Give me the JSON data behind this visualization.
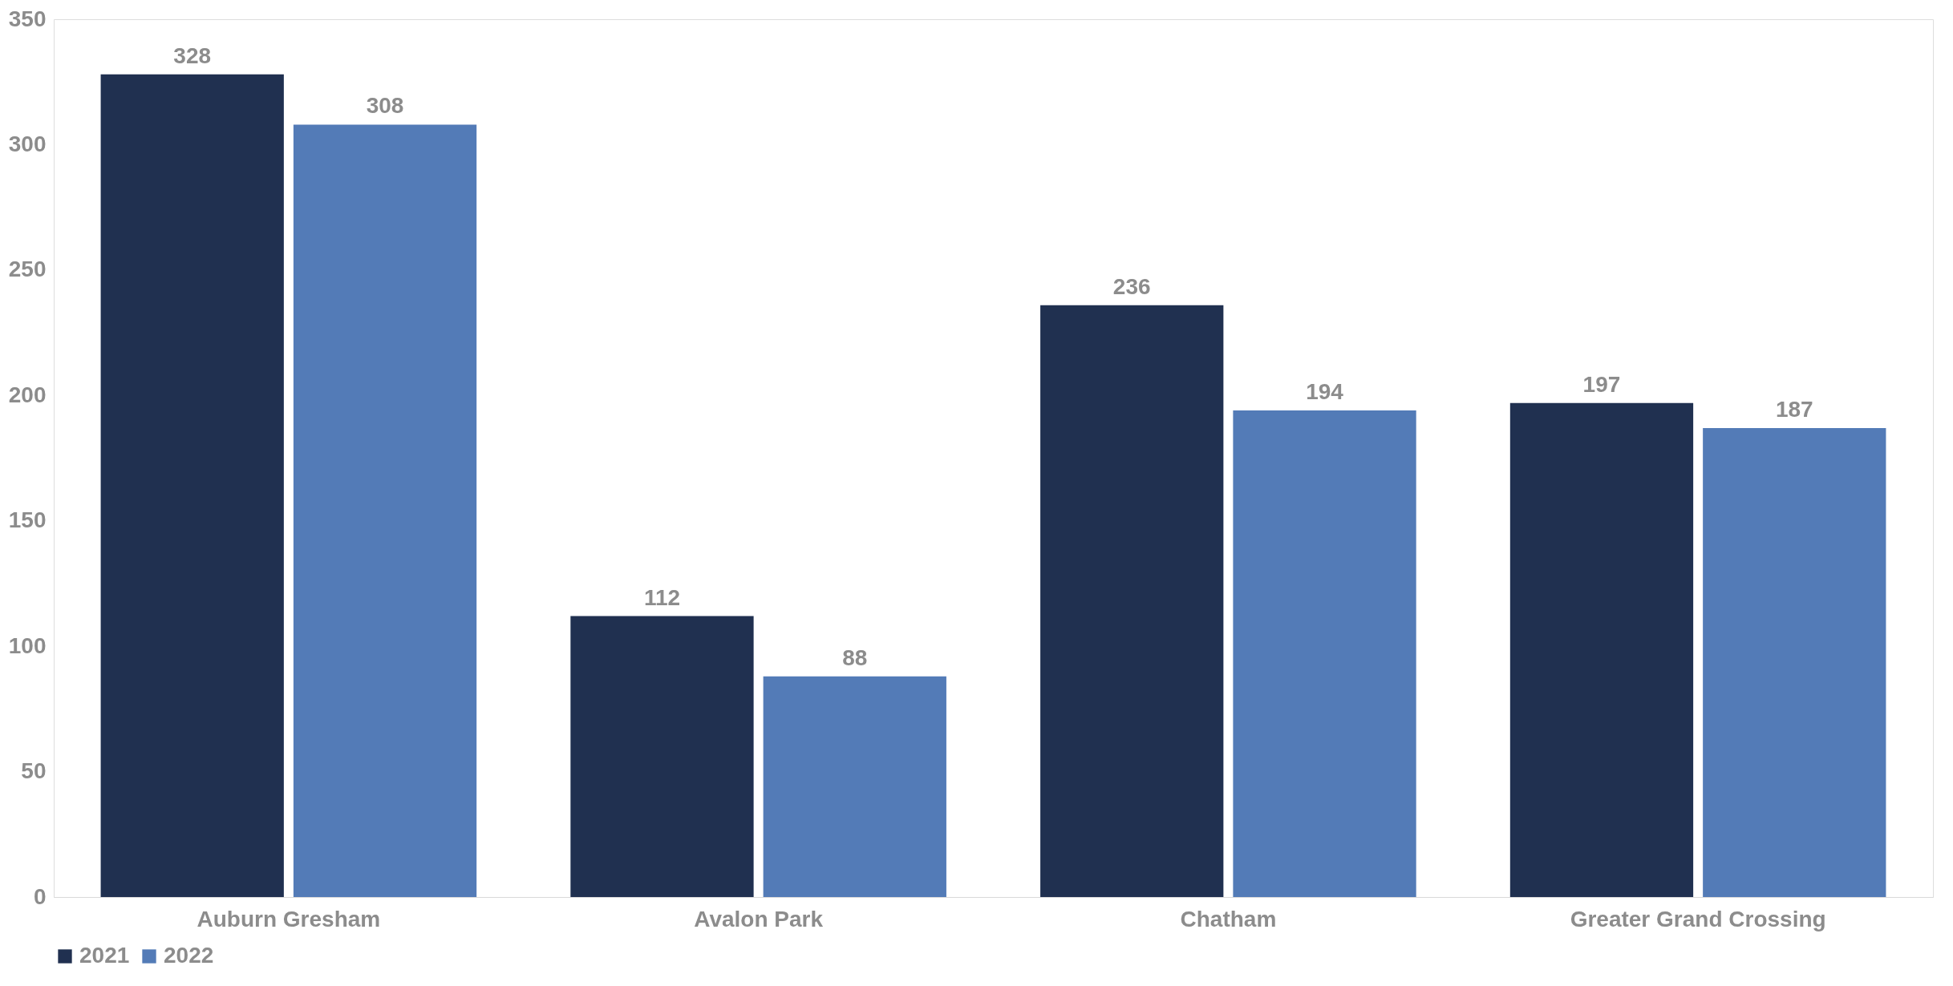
{
  "chart_data": {
    "type": "bar",
    "categories": [
      "Auburn Gresham",
      "Avalon Park",
      "Chatham",
      "Greater Grand Crossing"
    ],
    "series": [
      {
        "name": "2021",
        "color": "#203050",
        "values": [
          328,
          112,
          236,
          197
        ]
      },
      {
        "name": "2022",
        "color": "#537bb7",
        "values": [
          308,
          88,
          194,
          187
        ]
      }
    ],
    "ylim": [
      0,
      350
    ],
    "yticks": [
      0,
      50,
      100,
      150,
      200,
      250,
      300,
      350
    ],
    "data_labels": true,
    "grid": false,
    "legend": "bottom"
  }
}
